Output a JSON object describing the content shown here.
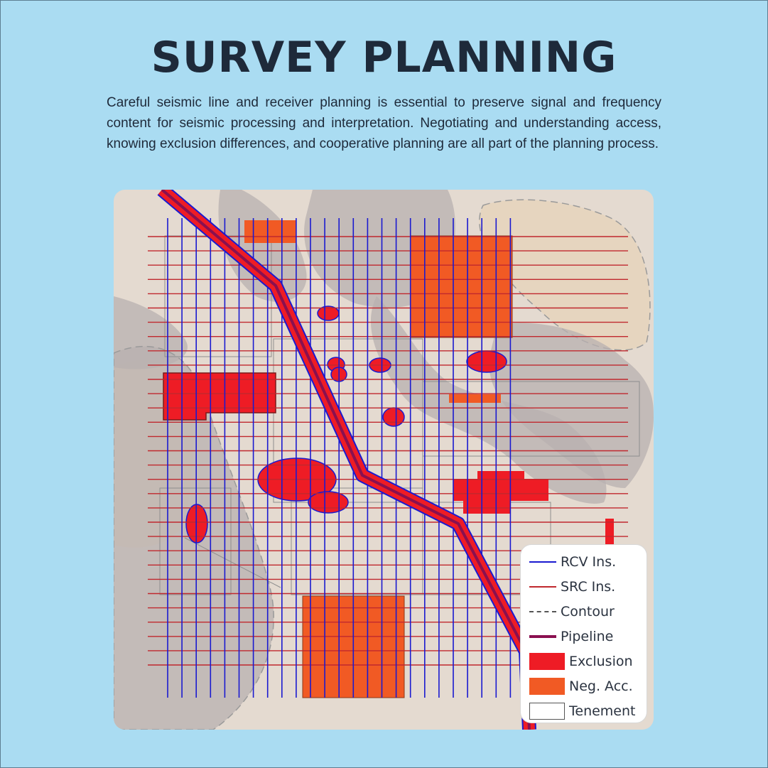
{
  "header": {
    "title": "SURVEY PLANNING",
    "description": "Careful seismic line and receiver planning is essential to preserve signal and frequency content for seismic processing and interpretation. Negotiating and understanding access, knowing exclusion differences, and cooperative planning are all part of the planning process."
  },
  "colors": {
    "background": "#aadcf2",
    "map_ground": "#e4dad0",
    "rcv_line": "#1a1ad0",
    "src_line": "#c0282e",
    "pipeline": "#8a1050",
    "exclusion": "#ee1c25",
    "negotiated_access": "#f15a24",
    "contour_fill": "#b5aeae",
    "contour_tan": "#e6d5bf"
  },
  "legend": {
    "items": [
      {
        "key": "rcv",
        "label": "RCV Ins.",
        "swatch": "line",
        "color": "#1a1ad0"
      },
      {
        "key": "src",
        "label": "SRC Ins.",
        "swatch": "line",
        "color": "#c0282e"
      },
      {
        "key": "contour",
        "label": "Contour",
        "swatch": "dashed",
        "color": "#555555"
      },
      {
        "key": "pipeline",
        "label": "Pipeline",
        "swatch": "thick-line",
        "color": "#8a1050"
      },
      {
        "key": "exclusion",
        "label": "Exclusion",
        "swatch": "fill",
        "color": "#ee1c25"
      },
      {
        "key": "negacc",
        "label": "Neg. Acc.",
        "swatch": "fill",
        "color": "#f15a24"
      },
      {
        "key": "tenement",
        "label": "Tenement",
        "swatch": "outline",
        "color": "#555555"
      }
    ]
  }
}
